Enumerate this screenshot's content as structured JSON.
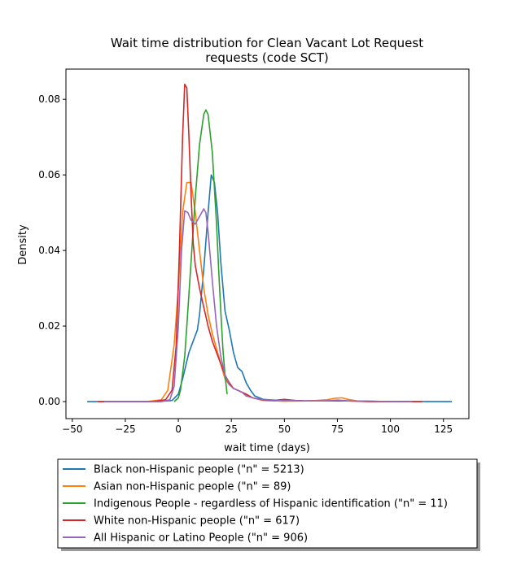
{
  "chart_data": {
    "type": "line",
    "title_line1": "Wait time distribution  for Clean Vacant Lot Request",
    "title_line2": "requests (code SCT)",
    "xlabel": "wait time (days)",
    "ylabel": "Density",
    "xlim": [
      -53,
      137
    ],
    "ylim": [
      -0.0045,
      0.088
    ],
    "xticks": [
      -50,
      -25,
      0,
      25,
      50,
      75,
      100,
      125
    ],
    "xtick_labels": [
      "−50",
      "−25",
      "0",
      "25",
      "50",
      "75",
      "100",
      "125"
    ],
    "yticks": [
      0.0,
      0.02,
      0.04,
      0.06,
      0.08
    ],
    "ytick_labels": [
      "0.00",
      "0.02",
      "0.04",
      "0.06",
      "0.08"
    ],
    "grid": false,
    "legend_position": "below-plot",
    "series": [
      {
        "name": "Black non-Hispanic people (\"n\" = 5213)",
        "color": "#1f77b4",
        "x": [
          -43,
          -10,
          -3,
          0,
          2,
          5,
          7,
          9,
          10,
          12,
          14,
          15.5,
          17,
          18.5,
          20,
          22,
          24,
          26,
          28,
          30,
          32,
          34,
          36,
          40,
          45,
          50,
          55,
          60,
          65,
          70,
          75,
          80,
          90,
          100,
          110,
          120,
          129
        ],
        "y": [
          0,
          0,
          0.0003,
          0.002,
          0.006,
          0.013,
          0.016,
          0.019,
          0.023,
          0.035,
          0.05,
          0.06,
          0.058,
          0.05,
          0.037,
          0.024,
          0.019,
          0.013,
          0.009,
          0.008,
          0.005,
          0.003,
          0.0015,
          0.0006,
          0.0004,
          0.0004,
          0.0003,
          0.0002,
          0.0002,
          0.0002,
          0.0003,
          0.0002,
          0.0001,
          0,
          0,
          0,
          0
        ]
      },
      {
        "name": "Asian non-Hispanic people (\"n\" = 89)",
        "color": "#ff7f0e",
        "x": [
          -37,
          -15,
          -8,
          -5,
          -2,
          0,
          2,
          4,
          6,
          8,
          10,
          12,
          14,
          16,
          18,
          20,
          22,
          24,
          26,
          28,
          30,
          35,
          40,
          50,
          60,
          65,
          70,
          74,
          77,
          80,
          85,
          90,
          100,
          110
        ],
        "y": [
          0,
          0,
          0.0005,
          0.003,
          0.015,
          0.03,
          0.05,
          0.058,
          0.058,
          0.05,
          0.04,
          0.03,
          0.023,
          0.018,
          0.014,
          0.01,
          0.006,
          0.0045,
          0.0035,
          0.003,
          0.0025,
          0.001,
          0.0003,
          0.0001,
          0.0002,
          0.0003,
          0.0005,
          0.0009,
          0.001,
          0.0006,
          0.0001,
          0,
          0,
          0
        ]
      },
      {
        "name": "Indigenous People - regardless of Hispanic identification (\"n\" = 11)",
        "color": "#2ca02c",
        "x": [
          -2,
          0,
          1,
          3,
          4,
          6,
          8,
          10,
          12,
          13,
          14,
          16,
          18,
          19,
          20,
          21,
          22,
          23
        ],
        "y": [
          0,
          0.001,
          0.003,
          0.012,
          0.02,
          0.037,
          0.054,
          0.068,
          0.076,
          0.0772,
          0.076,
          0.066,
          0.047,
          0.035,
          0.024,
          0.014,
          0.007,
          0.002
        ]
      },
      {
        "name": "White non-Hispanic people (\"n\" = 617)",
        "color": "#d62728",
        "x": [
          -38,
          -12,
          -6,
          -3,
          -1,
          0.5,
          2,
          3,
          4,
          5,
          6,
          7,
          8,
          10,
          12,
          14,
          16,
          18,
          20,
          22,
          24,
          26,
          28,
          30,
          32,
          35,
          40,
          45,
          50,
          55,
          60,
          70,
          80,
          90,
          100,
          115
        ],
        "y": [
          0,
          0,
          0.0005,
          0.003,
          0.015,
          0.04,
          0.07,
          0.084,
          0.083,
          0.07,
          0.055,
          0.042,
          0.036,
          0.03,
          0.025,
          0.02,
          0.016,
          0.013,
          0.01,
          0.007,
          0.005,
          0.0035,
          0.003,
          0.0025,
          0.002,
          0.001,
          0.0004,
          0.0003,
          0.0006,
          0.0003,
          0.0002,
          0.0002,
          0.0002,
          0,
          0,
          0
        ]
      },
      {
        "name": "All Hispanic or Latino People (\"n\" = 906)",
        "color": "#9467bd",
        "x": [
          -35,
          -8,
          -4,
          -2,
          0,
          1.5,
          3,
          4.5,
          6,
          8,
          10,
          12,
          13,
          14,
          16,
          18,
          20,
          22,
          24,
          26,
          28,
          30,
          32,
          35,
          40,
          50,
          60,
          70,
          75,
          80,
          90,
          100,
          110
        ],
        "y": [
          0,
          0,
          0.0005,
          0.004,
          0.02,
          0.04,
          0.0505,
          0.05,
          0.048,
          0.047,
          0.049,
          0.051,
          0.05,
          0.045,
          0.032,
          0.02,
          0.012,
          0.007,
          0.0045,
          0.0035,
          0.003,
          0.0025,
          0.0015,
          0.001,
          0.0005,
          0.0003,
          0.0002,
          0.0002,
          0.0004,
          0.0002,
          0.0001,
          0,
          0
        ]
      }
    ]
  }
}
